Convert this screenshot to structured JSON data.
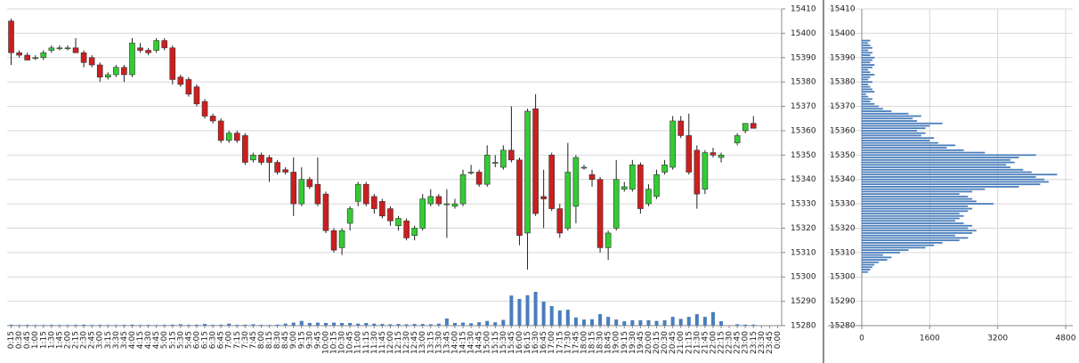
{
  "chart_data": [
    {
      "type": "candlestick",
      "categories": [
        "0:15",
        "0:30",
        "0:45",
        "1:00",
        "1:15",
        "1:30",
        "1:45",
        "2:00",
        "2:15",
        "2:30",
        "2:45",
        "3:00",
        "3:15",
        "3:30",
        "3:45",
        "4:00",
        "4:15",
        "4:30",
        "4:45",
        "5:00",
        "5:15",
        "5:30",
        "5:45",
        "6:00",
        "6:15",
        "6:30",
        "6:45",
        "7:00",
        "7:15",
        "7:30",
        "7:45",
        "8:00",
        "8:15",
        "8:30",
        "8:45",
        "9:00",
        "9:15",
        "9:30",
        "9:45",
        "10:00",
        "10:15",
        "10:30",
        "10:45",
        "11:00",
        "11:15",
        "11:30",
        "11:45",
        "12:00",
        "12:15",
        "12:30",
        "12:45",
        "13:00",
        "13:15",
        "13:30",
        "13:45",
        "14:00",
        "14:15",
        "14:30",
        "14:45",
        "15:00",
        "15:15",
        "15:30",
        "15:45",
        "16:00",
        "16:15",
        "16:30",
        "16:45",
        "17:00",
        "17:15",
        "17:30",
        "17:45",
        "18:00",
        "18:15",
        "18:30",
        "18:45",
        "19:00",
        "19:15",
        "19:30",
        "19:45",
        "20:00",
        "20:15",
        "20:30",
        "20:45",
        "21:00",
        "21:15",
        "21:30",
        "21:45",
        "22:00",
        "22:15",
        "22:30",
        "22:45",
        "23:00",
        "23:15",
        "23:30",
        "23:45",
        "0:00"
      ],
      "open": [
        15405,
        15392,
        15391,
        15390,
        15390,
        15393,
        15394,
        15394,
        15394,
        15392,
        15390,
        15387,
        15382,
        15383,
        15386,
        15383,
        15394,
        15393,
        15393,
        15397,
        15394,
        15382,
        15381,
        15378,
        15372,
        15366,
        15364,
        15356,
        15359,
        15358,
        15348,
        15350,
        15349,
        15347,
        15344,
        15343,
        15330,
        15340,
        15338,
        15334,
        15319,
        15312,
        15322,
        15331,
        15338,
        15333,
        15331,
        15328,
        15321,
        15323,
        15317,
        15320,
        15330,
        15333,
        15330,
        15329,
        15330,
        15343,
        15343,
        15338,
        15347,
        15345,
        15352,
        15348,
        15318,
        15369,
        15333,
        15350,
        15328,
        15320,
        15329,
        15345,
        15342,
        15340,
        15312,
        15320,
        15336,
        15336,
        15346,
        15330,
        15333,
        15343,
        15345,
        15364,
        15358,
        15352,
        15336,
        15351,
        15349,
        null,
        15355,
        15360,
        15363,
        null,
        null,
        null
      ],
      "high": [
        15406,
        15393,
        15392,
        15391,
        15393,
        15395,
        15395,
        15395,
        15398,
        15393,
        15391,
        15388,
        15384,
        15387,
        15387,
        15398,
        15396,
        15394,
        15398,
        15398,
        15395,
        15383,
        15382,
        15379,
        15373,
        15367,
        15365,
        15360,
        15360,
        15359,
        15351,
        15351,
        15350,
        15348,
        15345,
        15349,
        15345,
        15341,
        15349,
        15335,
        15320,
        15320,
        15329,
        15339,
        15339,
        15334,
        15332,
        15329,
        15325,
        15324,
        15321,
        15334,
        15336,
        15334,
        15336,
        15332,
        15344,
        15346,
        15344,
        15354,
        15350,
        15354,
        15370,
        15349,
        15369,
        15375,
        15344,
        15351,
        15330,
        15355,
        15350,
        15346,
        15344,
        15341,
        15319,
        15348,
        15339,
        15348,
        15347,
        15338,
        15344,
        15348,
        15366,
        15366,
        15367,
        15354,
        15352,
        15353,
        15351,
        null,
        15359,
        15363,
        15366,
        null,
        null,
        null
      ],
      "low": [
        15387,
        15390,
        15389,
        15389,
        15389,
        15392,
        15393,
        15393,
        15392,
        15386,
        15386,
        15380,
        15381,
        15382,
        15380,
        15382,
        15392,
        15391,
        15392,
        15393,
        15379,
        15378,
        15374,
        15370,
        15365,
        15363,
        15355,
        15355,
        15355,
        15346,
        15347,
        15346,
        15339,
        15342,
        15342,
        15325,
        15329,
        15336,
        15329,
        15318,
        15310,
        15309,
        15319,
        15329,
        15329,
        15326,
        15324,
        15321,
        15319,
        15315,
        15315,
        15319,
        15329,
        15329,
        15316,
        15328,
        15329,
        15342,
        15337,
        15337,
        15345,
        15344,
        15347,
        15313,
        15303,
        15325,
        15320,
        15327,
        15316,
        15319,
        15322,
        15344,
        15337,
        15310,
        15307,
        15319,
        15335,
        15335,
        15326,
        15329,
        15332,
        15342,
        15344,
        15357,
        15342,
        15328,
        15334,
        15349,
        15347,
        null,
        15354,
        15359,
        15361,
        null,
        null,
        null
      ],
      "close": [
        15392,
        15391,
        15389,
        15390,
        15392,
        15394,
        15394,
        15394,
        15392,
        15388,
        15387,
        15382,
        15383,
        15386,
        15383,
        15396,
        15393,
        15392,
        15397,
        15394,
        15381,
        15379,
        15375,
        15371,
        15366,
        15364,
        15356,
        15359,
        15356,
        15347,
        15350,
        15347,
        15347,
        15343,
        15343,
        15330,
        15340,
        15337,
        15330,
        15319,
        15311,
        15319,
        15328,
        15338,
        15330,
        15328,
        15325,
        15323,
        15324,
        15316,
        15320,
        15332,
        15333,
        15330,
        15330,
        15330,
        15342,
        15343,
        15338,
        15350,
        15347,
        15352,
        15348,
        15317,
        15368,
        15326,
        15332,
        15328,
        15318,
        15343,
        15349,
        15345,
        15340,
        15312,
        15318,
        15340,
        15337,
        15346,
        15328,
        15336,
        15342,
        15346,
        15364,
        15358,
        15343,
        15334,
        15351,
        15350,
        15350,
        null,
        15358,
        15363,
        15361,
        null,
        null,
        null
      ],
      "volume": [
        30,
        20,
        25,
        20,
        20,
        25,
        20,
        20,
        25,
        30,
        20,
        25,
        20,
        20,
        25,
        30,
        20,
        25,
        20,
        25,
        30,
        40,
        25,
        30,
        50,
        25,
        30,
        60,
        25,
        30,
        40,
        25,
        20,
        30,
        60,
        90,
        140,
        80,
        90,
        80,
        90,
        80,
        80,
        60,
        80,
        60,
        50,
        40,
        50,
        40,
        50,
        50,
        40,
        60,
        210,
        80,
        90,
        70,
        100,
        140,
        100,
        170,
        890,
        790,
        900,
        1000,
        710,
        580,
        450,
        470,
        240,
        180,
        190,
        340,
        260,
        180,
        130,
        160,
        160,
        160,
        140,
        160,
        260,
        200,
        260,
        340,
        260,
        400,
        130,
        null,
        40,
        30,
        30,
        null,
        null,
        null
      ],
      "ylim": [
        15280,
        15410
      ],
      "yticks": [
        15280,
        15290,
        15300,
        15310,
        15320,
        15330,
        15340,
        15350,
        15360,
        15370,
        15380,
        15390,
        15400,
        15410
      ],
      "up_color": "#33cc33",
      "down_color": "#cc1f1f",
      "volume_color": "#4a7ebb",
      "grid": true
    },
    {
      "type": "hbar",
      "y": [
        15302,
        15303,
        15304,
        15305,
        15306,
        15307,
        15308,
        15309,
        15310,
        15311,
        15312,
        15313,
        15314,
        15315,
        15316,
        15317,
        15318,
        15319,
        15320,
        15321,
        15322,
        15323,
        15324,
        15325,
        15326,
        15327,
        15328,
        15329,
        15330,
        15331,
        15332,
        15333,
        15334,
        15335,
        15336,
        15337,
        15338,
        15339,
        15340,
        15341,
        15342,
        15343,
        15344,
        15345,
        15346,
        15347,
        15348,
        15349,
        15350,
        15351,
        15352,
        15353,
        15354,
        15355,
        15356,
        15357,
        15358,
        15359,
        15360,
        15361,
        15362,
        15363,
        15364,
        15365,
        15366,
        15367,
        15368,
        15369,
        15370,
        15371,
        15372,
        15373,
        15374,
        15375,
        15376,
        15377,
        15378,
        15379,
        15380,
        15381,
        15382,
        15383,
        15384,
        15385,
        15386,
        15387,
        15388,
        15389,
        15390,
        15391,
        15392,
        15393,
        15394,
        15395,
        15396,
        15397
      ],
      "values": [
        150,
        200,
        250,
        300,
        400,
        600,
        700,
        500,
        900,
        1100,
        1500,
        1700,
        1900,
        2300,
        2500,
        2200,
        2600,
        2700,
        2500,
        2600,
        2400,
        2200,
        2300,
        2400,
        2300,
        2500,
        2600,
        2500,
        3100,
        2700,
        2600,
        2500,
        2300,
        2600,
        2900,
        3700,
        4200,
        4400,
        4300,
        4100,
        4600,
        4000,
        3800,
        3500,
        3400,
        3600,
        3500,
        3700,
        4100,
        2900,
        2400,
        2000,
        2200,
        1800,
        1600,
        1700,
        1400,
        1500,
        1300,
        1500,
        1600,
        1900,
        1300,
        1200,
        1400,
        1100,
        700,
        500,
        400,
        300,
        200,
        250,
        150,
        100,
        300,
        250,
        200,
        150,
        250,
        150,
        200,
        300,
        200,
        150,
        250,
        300,
        200,
        250,
        300,
        200,
        250,
        150,
        250,
        200,
        150,
        200
      ],
      "xlim": [
        0,
        4800
      ],
      "xticks": [
        0,
        1600,
        3200,
        4800
      ],
      "ylim": [
        15280,
        15410
      ],
      "yticks": [
        15280,
        15290,
        15300,
        15310,
        15320,
        15330,
        15340,
        15350,
        15360,
        15370,
        15380,
        15390,
        15400,
        15410
      ],
      "color": "#4a7ebb",
      "grid": true
    }
  ]
}
